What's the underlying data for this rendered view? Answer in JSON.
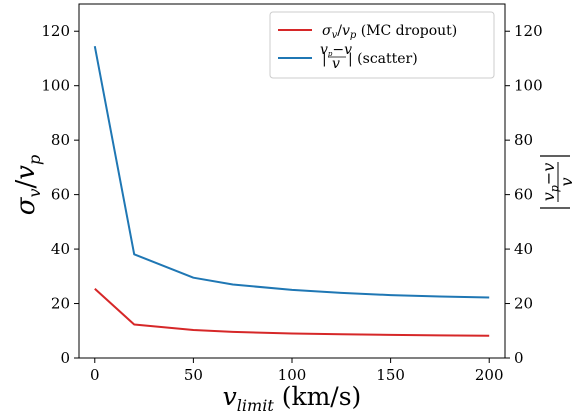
{
  "chart_data": {
    "type": "line",
    "xlabel": "v_limit (km/s)",
    "ylabel_left": "σ_v / v_p",
    "ylabel_right": "|(v_p − v)/v|",
    "xlim": [
      -8,
      208
    ],
    "ylim": [
      0,
      130
    ],
    "xticks": [
      0,
      50,
      100,
      150,
      200
    ],
    "yticks": [
      0,
      20,
      40,
      60,
      80,
      100,
      120
    ],
    "grid": false,
    "legend_position": "top-right",
    "x": [
      0,
      20,
      50,
      70,
      100,
      125,
      150,
      175,
      200
    ],
    "series": [
      {
        "name": "σ_v/v_p (MC dropout)",
        "color": "#d62728",
        "values": [
          25.4,
          12.3,
          10.3,
          9.6,
          9.0,
          8.7,
          8.5,
          8.3,
          8.2
        ]
      },
      {
        "name": "|(v_p−v)/v| (scatter)",
        "color": "#1f77b4",
        "values": [
          114.5,
          38.1,
          29.5,
          27.0,
          25.0,
          23.9,
          23.1,
          22.6,
          22.2
        ]
      }
    ]
  }
}
